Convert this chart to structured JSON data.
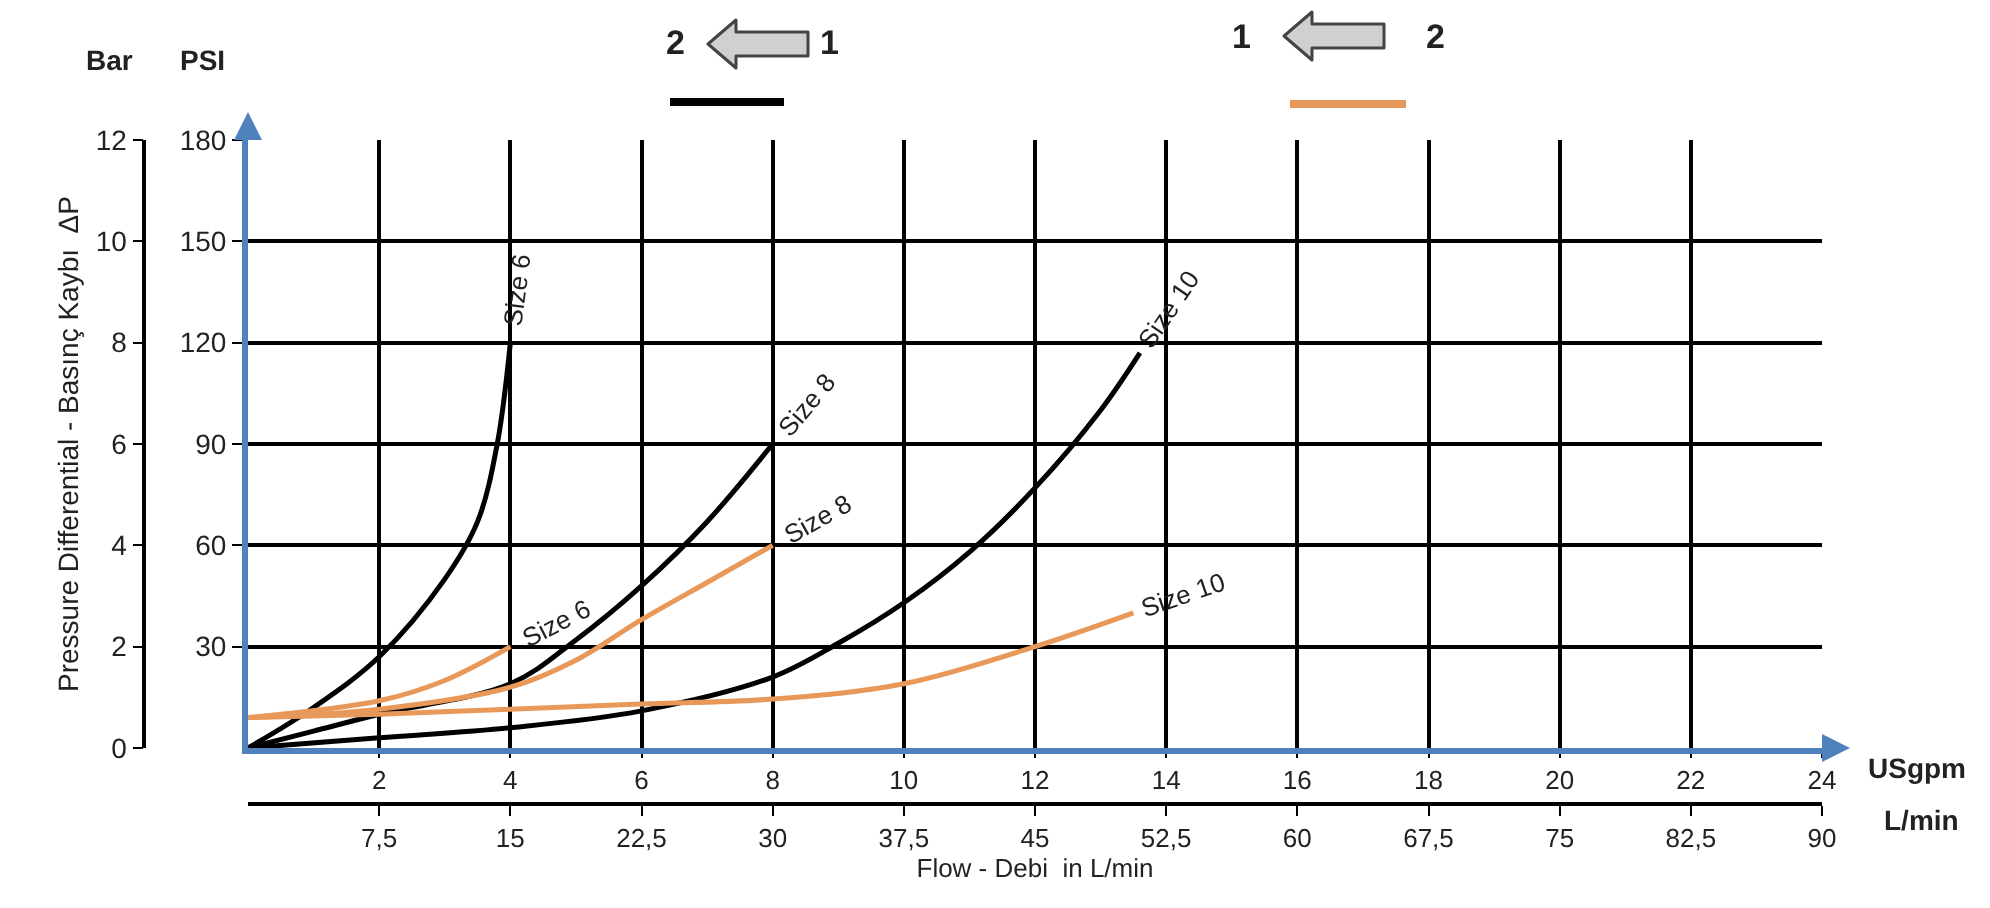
{
  "chart_data": {
    "type": "line",
    "ylabel": "Pressure Differential - Basınç Kaybı  ΔP",
    "xlabel": "Flow - Debi  in L/min",
    "xlim": [
      0,
      24
    ],
    "xticks": [
      2,
      4,
      6,
      8,
      10,
      12,
      14,
      16,
      18,
      20,
      22,
      24
    ],
    "x2lim": [
      0,
      90
    ],
    "x2ticks": [
      {
        "value": 7.5,
        "label": "7,5"
      },
      15,
      {
        "value": 22.5,
        "label": "22,5"
      },
      30,
      {
        "value": 37.5,
        "label": "37,5"
      },
      45,
      {
        "value": 52.5,
        "label": "52,5"
      },
      60,
      {
        "value": 67.5,
        "label": "67,5"
      },
      75,
      {
        "value": 82.5,
        "label": "82,5"
      },
      90
    ],
    "ylim": [
      0,
      12
    ],
    "yticks": [
      0,
      2,
      4,
      6,
      8,
      10,
      12
    ],
    "y2lim": [
      0,
      180
    ],
    "y2ticks": [
      30,
      60,
      90,
      120,
      150,
      180
    ],
    "grid": true,
    "legend": false,
    "marker": "none",
    "line_style": "solid",
    "annotations": [
      "2",
      "1",
      "1",
      "2",
      "Bar",
      "PSI",
      "USgpm",
      "L/min"
    ],
    "series": [
      {
        "name": "Size 6",
        "color": "#000000",
        "axis": "y2",
        "x": [
          0,
          1,
          2,
          3,
          3.5,
          3.8,
          4
        ],
        "values": [
          0,
          12,
          27,
          50,
          67,
          90,
          120
        ]
      },
      {
        "name": "Size 8",
        "color": "#000000",
        "axis": "y2",
        "x": [
          0,
          1,
          2,
          4,
          5,
          6,
          7,
          8
        ],
        "values": [
          0,
          5,
          10,
          19,
          32,
          48,
          67,
          90
        ]
      },
      {
        "name": "Size 10",
        "color": "#000000",
        "axis": "y2",
        "x": [
          0,
          2,
          4,
          6,
          8,
          9,
          10,
          11,
          12,
          13,
          13.6
        ],
        "values": [
          0,
          3,
          6,
          11,
          21,
          31,
          43,
          58,
          77,
          100,
          117
        ]
      },
      {
        "name": "Size 6",
        "color": "#e8995a",
        "axis": "y2",
        "x": [
          0,
          2,
          3,
          4
        ],
        "values": [
          9,
          14,
          20,
          30
        ]
      },
      {
        "name": "Size 8",
        "color": "#e8995a",
        "axis": "y2",
        "x": [
          0,
          2,
          4,
          5,
          6,
          7,
          8
        ],
        "values": [
          9,
          11.5,
          18,
          26,
          38,
          49,
          60
        ]
      },
      {
        "name": "Size 10",
        "color": "#e8995a",
        "axis": "y2",
        "x": [
          0,
          2,
          4,
          6,
          8,
          10,
          12,
          13.5
        ],
        "values": [
          9,
          10,
          11.5,
          13,
          14.5,
          19,
          30,
          40
        ]
      }
    ]
  }
}
